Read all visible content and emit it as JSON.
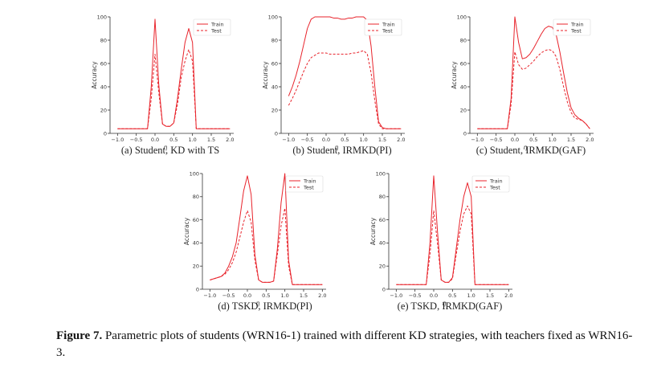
{
  "figure": {
    "caption_label": "Figure 7.",
    "caption_text": " Parametric plots of students (WRN16-1) trained with different KD strategies, with teachers fixed as WRN16-3."
  },
  "colors": {
    "train": "#e8232b",
    "test": "#e8232b",
    "axis": "#333333"
  },
  "chart_data": [
    {
      "id": "a",
      "type": "line",
      "caption": "(a) Student, KD with TS",
      "xlabel": "η",
      "ylabel": "Accuracy",
      "xlim": [
        -1.2,
        2.1
      ],
      "ylim": [
        0,
        100
      ],
      "xticks": [
        -1.0,
        -0.5,
        0.0,
        0.5,
        1.0,
        1.5,
        2.0
      ],
      "yticks": [
        0,
        20,
        40,
        60,
        80,
        100
      ],
      "legend_position": "top-right",
      "series": [
        {
          "name": "Train",
          "style": "solid",
          "x": [
            -1.0,
            -0.9,
            -0.8,
            -0.7,
            -0.6,
            -0.5,
            -0.4,
            -0.3,
            -0.2,
            -0.1,
            0.0,
            0.1,
            0.2,
            0.3,
            0.4,
            0.5,
            0.6,
            0.7,
            0.8,
            0.9,
            1.0,
            1.1,
            1.2,
            1.3,
            1.4,
            1.5,
            1.6,
            1.7,
            1.8,
            1.9,
            2.0
          ],
          "y": [
            4,
            4,
            4,
            4,
            4,
            4,
            4,
            4,
            4,
            40,
            98,
            42,
            8,
            6,
            6,
            9,
            30,
            55,
            78,
            90,
            78,
            4,
            4,
            4,
            4,
            4,
            4,
            4,
            4,
            4,
            4
          ]
        },
        {
          "name": "Test",
          "style": "dashed",
          "x": [
            -1.0,
            -0.9,
            -0.8,
            -0.7,
            -0.6,
            -0.5,
            -0.4,
            -0.3,
            -0.2,
            -0.1,
            0.0,
            0.1,
            0.2,
            0.3,
            0.4,
            0.5,
            0.6,
            0.7,
            0.8,
            0.9,
            1.0,
            1.1,
            1.2,
            1.3,
            1.4,
            1.5,
            1.6,
            1.7,
            1.8,
            1.9,
            2.0
          ],
          "y": [
            4,
            4,
            4,
            4,
            4,
            4,
            4,
            4,
            4,
            30,
            68,
            35,
            8,
            6,
            6,
            9,
            25,
            48,
            62,
            72,
            62,
            4,
            4,
            4,
            4,
            4,
            4,
            4,
            4,
            4,
            4
          ]
        }
      ]
    },
    {
      "id": "b",
      "type": "line",
      "caption": "(b) Student, IRMKD(PI)",
      "xlabel": "η",
      "ylabel": "Accuracy",
      "xlim": [
        -1.2,
        2.1
      ],
      "ylim": [
        0,
        100
      ],
      "xticks": [
        -1.0,
        -0.5,
        0.0,
        0.5,
        1.0,
        1.5,
        2.0
      ],
      "yticks": [
        0,
        20,
        40,
        60,
        80,
        100
      ],
      "legend_position": "top-right",
      "series": [
        {
          "name": "Train",
          "style": "solid",
          "x": [
            -1.0,
            -0.9,
            -0.8,
            -0.7,
            -0.6,
            -0.5,
            -0.4,
            -0.3,
            -0.2,
            -0.1,
            0.0,
            0.1,
            0.2,
            0.3,
            0.4,
            0.5,
            0.6,
            0.7,
            0.8,
            0.9,
            1.0,
            1.1,
            1.2,
            1.3,
            1.4,
            1.5,
            1.6,
            1.7,
            1.8,
            1.9,
            2.0
          ],
          "y": [
            32,
            40,
            50,
            62,
            76,
            90,
            98,
            100,
            100,
            100,
            100,
            100,
            99,
            99,
            98,
            98,
            99,
            99,
            100,
            100,
            100,
            97,
            75,
            40,
            10,
            5,
            4,
            4,
            4,
            4,
            4
          ]
        },
        {
          "name": "Test",
          "style": "dashed",
          "x": [
            -1.0,
            -0.9,
            -0.8,
            -0.7,
            -0.6,
            -0.5,
            -0.4,
            -0.3,
            -0.2,
            -0.1,
            0.0,
            0.1,
            0.2,
            0.3,
            0.4,
            0.5,
            0.6,
            0.7,
            0.8,
            0.9,
            1.0,
            1.1,
            1.2,
            1.3,
            1.4,
            1.5,
            1.6,
            1.7,
            1.8,
            1.9,
            2.0
          ],
          "y": [
            24,
            30,
            37,
            45,
            53,
            60,
            65,
            67,
            69,
            69,
            69,
            68,
            68,
            68,
            68,
            68,
            68,
            69,
            69,
            70,
            71,
            68,
            52,
            28,
            8,
            4,
            4,
            4,
            4,
            4,
            4
          ]
        }
      ]
    },
    {
      "id": "c",
      "type": "line",
      "caption": "(c) Student, IRMKD(GAF)",
      "xlabel": "η",
      "ylabel": "Accuracy",
      "xlim": [
        -1.2,
        2.1
      ],
      "ylim": [
        0,
        100
      ],
      "xticks": [
        -1.0,
        -0.5,
        0.0,
        0.5,
        1.0,
        1.5,
        2.0
      ],
      "yticks": [
        0,
        20,
        40,
        60,
        80,
        100
      ],
      "legend_position": "top-right",
      "series": [
        {
          "name": "Train",
          "style": "solid",
          "x": [
            -1.0,
            -0.9,
            -0.8,
            -0.7,
            -0.6,
            -0.5,
            -0.4,
            -0.3,
            -0.2,
            -0.1,
            0.0,
            0.1,
            0.2,
            0.3,
            0.4,
            0.5,
            0.6,
            0.7,
            0.8,
            0.9,
            1.0,
            1.1,
            1.2,
            1.3,
            1.4,
            1.5,
            1.6,
            1.7,
            1.8,
            1.9,
            2.0
          ],
          "y": [
            4,
            4,
            4,
            4,
            4,
            4,
            4,
            4,
            4,
            30,
            100,
            78,
            64,
            65,
            68,
            73,
            79,
            85,
            90,
            92,
            91,
            85,
            70,
            52,
            35,
            22,
            16,
            13,
            11,
            8,
            4
          ]
        },
        {
          "name": "Test",
          "style": "dashed",
          "x": [
            -1.0,
            -0.9,
            -0.8,
            -0.7,
            -0.6,
            -0.5,
            -0.4,
            -0.3,
            -0.2,
            -0.1,
            0.0,
            0.1,
            0.2,
            0.3,
            0.4,
            0.5,
            0.6,
            0.7,
            0.8,
            0.9,
            1.0,
            1.1,
            1.2,
            1.3,
            1.4,
            1.5,
            1.6,
            1.7,
            1.8,
            1.9,
            2.0
          ],
          "y": [
            4,
            4,
            4,
            4,
            4,
            4,
            4,
            4,
            4,
            25,
            70,
            59,
            55,
            56,
            59,
            62,
            66,
            69,
            71,
            72,
            71,
            66,
            55,
            40,
            27,
            18,
            13,
            12,
            11,
            8,
            4
          ]
        }
      ]
    },
    {
      "id": "d",
      "type": "line",
      "caption": "(d) TSKD, IRMKD(PI)",
      "xlabel": "η",
      "ylabel": "Accuracy",
      "xlim": [
        -1.2,
        2.1
      ],
      "ylim": [
        0,
        100
      ],
      "xticks": [
        -1.0,
        -0.5,
        0.0,
        0.5,
        1.0,
        1.5,
        2.0
      ],
      "yticks": [
        0,
        20,
        40,
        60,
        80,
        100
      ],
      "legend_position": "top-right",
      "series": [
        {
          "name": "Train",
          "style": "solid",
          "x": [
            -1.0,
            -0.9,
            -0.8,
            -0.7,
            -0.6,
            -0.5,
            -0.4,
            -0.3,
            -0.2,
            -0.1,
            0.0,
            0.1,
            0.2,
            0.3,
            0.4,
            0.5,
            0.6,
            0.7,
            0.8,
            0.9,
            1.0,
            1.1,
            1.2,
            1.3,
            1.4,
            1.5,
            1.6,
            1.7,
            1.8,
            1.9,
            2.0
          ],
          "y": [
            8,
            9,
            10,
            11,
            14,
            20,
            28,
            40,
            62,
            85,
            98,
            82,
            30,
            8,
            6,
            6,
            6,
            7,
            35,
            75,
            100,
            25,
            4,
            4,
            4,
            4,
            4,
            4,
            4,
            4,
            4
          ]
        },
        {
          "name": "Test",
          "style": "dashed",
          "x": [
            -1.0,
            -0.9,
            -0.8,
            -0.7,
            -0.6,
            -0.5,
            -0.4,
            -0.3,
            -0.2,
            -0.1,
            0.0,
            0.1,
            0.2,
            0.3,
            0.4,
            0.5,
            0.6,
            0.7,
            0.8,
            0.9,
            1.0,
            1.1,
            1.2,
            1.3,
            1.4,
            1.5,
            1.6,
            1.7,
            1.8,
            1.9,
            2.0
          ],
          "y": [
            8,
            9,
            10,
            11,
            13,
            17,
            23,
            32,
            45,
            58,
            68,
            58,
            25,
            8,
            6,
            6,
            6,
            7,
            30,
            55,
            70,
            20,
            4,
            4,
            4,
            4,
            4,
            4,
            4,
            4,
            4
          ]
        }
      ]
    },
    {
      "id": "e",
      "type": "line",
      "caption": "(e) TSKD, IRMKD(GAF)",
      "xlabel": "η",
      "ylabel": "Accuracy",
      "xlim": [
        -1.2,
        2.1
      ],
      "ylim": [
        0,
        100
      ],
      "xticks": [
        -1.0,
        -0.5,
        0.0,
        0.5,
        1.0,
        1.5,
        2.0
      ],
      "yticks": [
        0,
        20,
        40,
        60,
        80,
        100
      ],
      "legend_position": "top-right",
      "series": [
        {
          "name": "Train",
          "style": "solid",
          "x": [
            -1.0,
            -0.9,
            -0.8,
            -0.7,
            -0.6,
            -0.5,
            -0.4,
            -0.3,
            -0.2,
            -0.1,
            0.0,
            0.1,
            0.2,
            0.3,
            0.4,
            0.5,
            0.6,
            0.7,
            0.8,
            0.9,
            1.0,
            1.1,
            1.2,
            1.3,
            1.4,
            1.5,
            1.6,
            1.7,
            1.8,
            1.9,
            2.0
          ],
          "y": [
            4,
            4,
            4,
            4,
            4,
            4,
            4,
            4,
            4,
            40,
            98,
            50,
            8,
            6,
            6,
            10,
            35,
            60,
            80,
            92,
            80,
            4,
            4,
            4,
            4,
            4,
            4,
            4,
            4,
            4,
            4
          ]
        },
        {
          "name": "Test",
          "style": "dashed",
          "x": [
            -1.0,
            -0.9,
            -0.8,
            -0.7,
            -0.6,
            -0.5,
            -0.4,
            -0.3,
            -0.2,
            -0.1,
            0.0,
            0.1,
            0.2,
            0.3,
            0.4,
            0.5,
            0.6,
            0.7,
            0.8,
            0.9,
            1.0,
            1.1,
            1.2,
            1.3,
            1.4,
            1.5,
            1.6,
            1.7,
            1.8,
            1.9,
            2.0
          ],
          "y": [
            4,
            4,
            4,
            4,
            4,
            4,
            4,
            4,
            4,
            30,
            68,
            40,
            8,
            6,
            6,
            9,
            30,
            50,
            65,
            72,
            65,
            4,
            4,
            4,
            4,
            4,
            4,
            4,
            4,
            4,
            4
          ]
        }
      ]
    }
  ]
}
